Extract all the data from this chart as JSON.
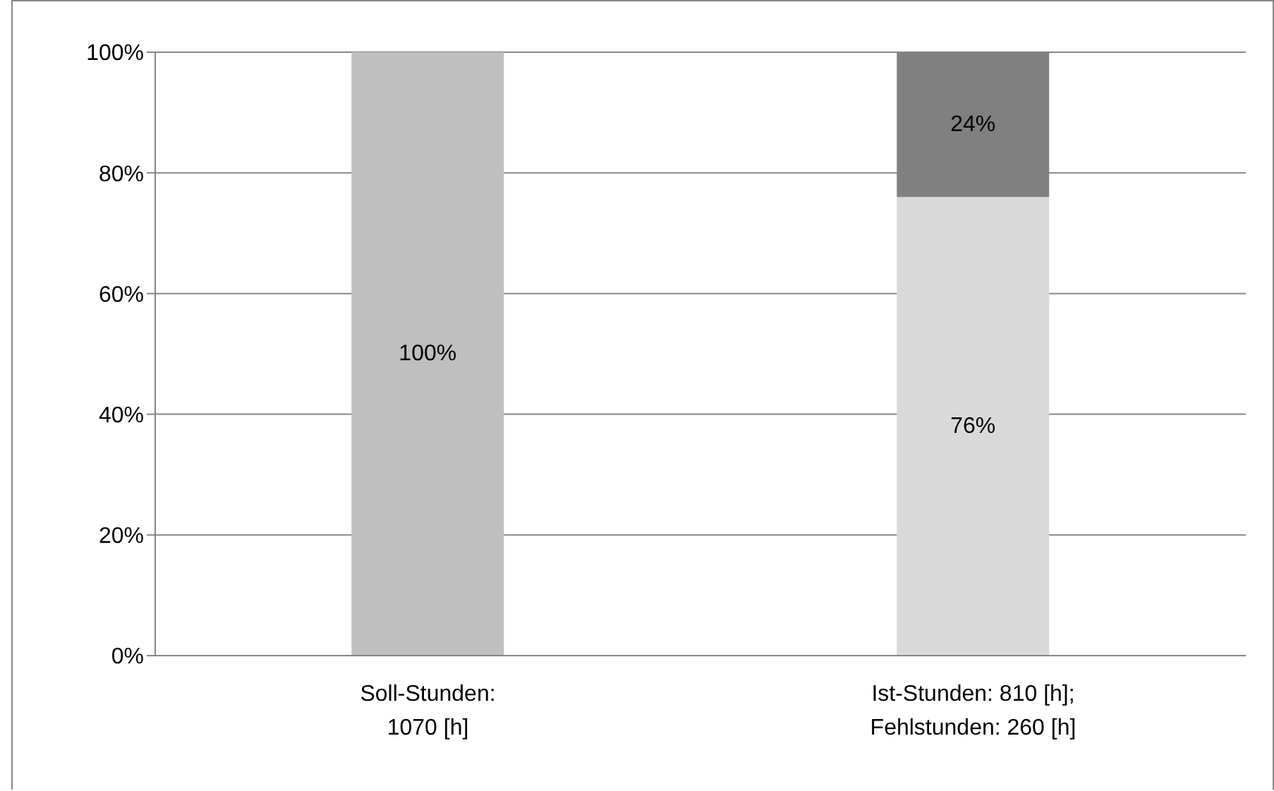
{
  "chart_data": {
    "type": "bar",
    "stacked": true,
    "categories": [
      "Soll-Stunden: 1070 [h]",
      "Ist-Stunden: 810 [h]; Fehlstunden: 260 [h]"
    ],
    "series": [
      {
        "colors": [
          "#bfbfbf",
          "#d9d9d9"
        ],
        "values": [
          100,
          76
        ],
        "value_labels": [
          "100%",
          "76%"
        ]
      },
      {
        "color": "#808080",
        "values": [
          null,
          24
        ],
        "value_labels": [
          null,
          "24%"
        ]
      }
    ],
    "ylim": [
      0,
      100
    ],
    "yticks": [
      {
        "value": 0,
        "label": "0%"
      },
      {
        "value": 20,
        "label": "20%"
      },
      {
        "value": 40,
        "label": "40%"
      },
      {
        "value": 60,
        "label": "60%"
      },
      {
        "value": 80,
        "label": "80%"
      },
      {
        "value": 100,
        "label": "100%"
      }
    ],
    "grid": "y",
    "legend": false
  }
}
